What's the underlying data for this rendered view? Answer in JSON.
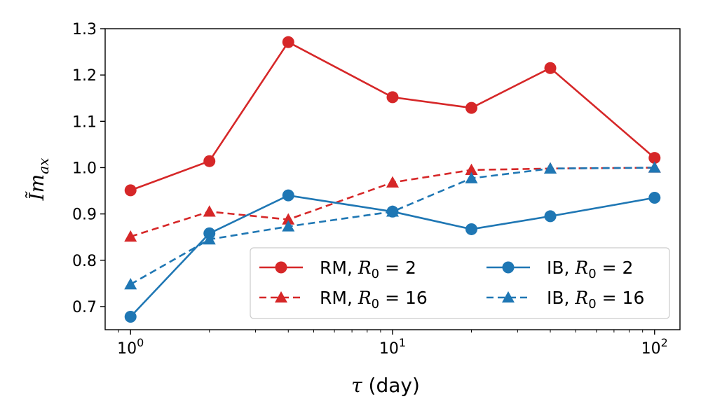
{
  "chart_data": {
    "type": "line",
    "xscale": "log",
    "xlim": [
      0.8,
      125
    ],
    "ylim": [
      0.65,
      1.3
    ],
    "xlabel": "τ (day)",
    "ylabel": "Ĩmax",
    "xticks": [
      {
        "value": 1,
        "base": "10",
        "exp": "0"
      },
      {
        "value": 10,
        "base": "10",
        "exp": "1"
      },
      {
        "value": 100,
        "base": "10",
        "exp": "2"
      }
    ],
    "yticks": [
      {
        "value": 0.7,
        "label": "0.7"
      },
      {
        "value": 0.8,
        "label": "0.8"
      },
      {
        "value": 0.9,
        "label": "0.9"
      },
      {
        "value": 1.0,
        "label": "1.0"
      },
      {
        "value": 1.1,
        "label": "1.1"
      },
      {
        "value": 1.2,
        "label": "1.2"
      },
      {
        "value": 1.3,
        "label": "1.3"
      }
    ],
    "grid": false,
    "legend_position": "lower-right",
    "x": [
      1,
      2,
      4,
      10,
      20,
      40,
      100
    ],
    "series": [
      {
        "id": "rm2",
        "name": "RM, R0 = 2",
        "legend_prefix": "RM, ",
        "legend_value": "2",
        "color": "#d62728",
        "linestyle": "solid",
        "marker": "circle",
        "values": [
          0.951,
          1.014,
          1.271,
          1.152,
          1.129,
          1.215,
          1.021
        ]
      },
      {
        "id": "rm16",
        "name": "RM, R0 = 16",
        "legend_prefix": "RM, ",
        "legend_value": "16",
        "color": "#d62728",
        "linestyle": "dashed",
        "marker": "triangle",
        "values": [
          0.851,
          0.905,
          0.888,
          0.968,
          0.995,
          0.998,
          1.0
        ]
      },
      {
        "id": "ib2",
        "name": "IB, R0 = 2",
        "legend_prefix": "IB, ",
        "legend_value": "2",
        "color": "#1f77b4",
        "linestyle": "solid",
        "marker": "circle",
        "values": [
          0.678,
          0.858,
          0.94,
          0.905,
          0.867,
          0.895,
          0.935
        ]
      },
      {
        "id": "ib16",
        "name": "IB, R0 = 16",
        "legend_prefix": "IB, ",
        "legend_value": "16",
        "color": "#1f77b4",
        "linestyle": "dashed",
        "marker": "triangle",
        "values": [
          0.748,
          0.845,
          0.873,
          0.905,
          0.977,
          0.998,
          1.0
        ]
      }
    ]
  }
}
